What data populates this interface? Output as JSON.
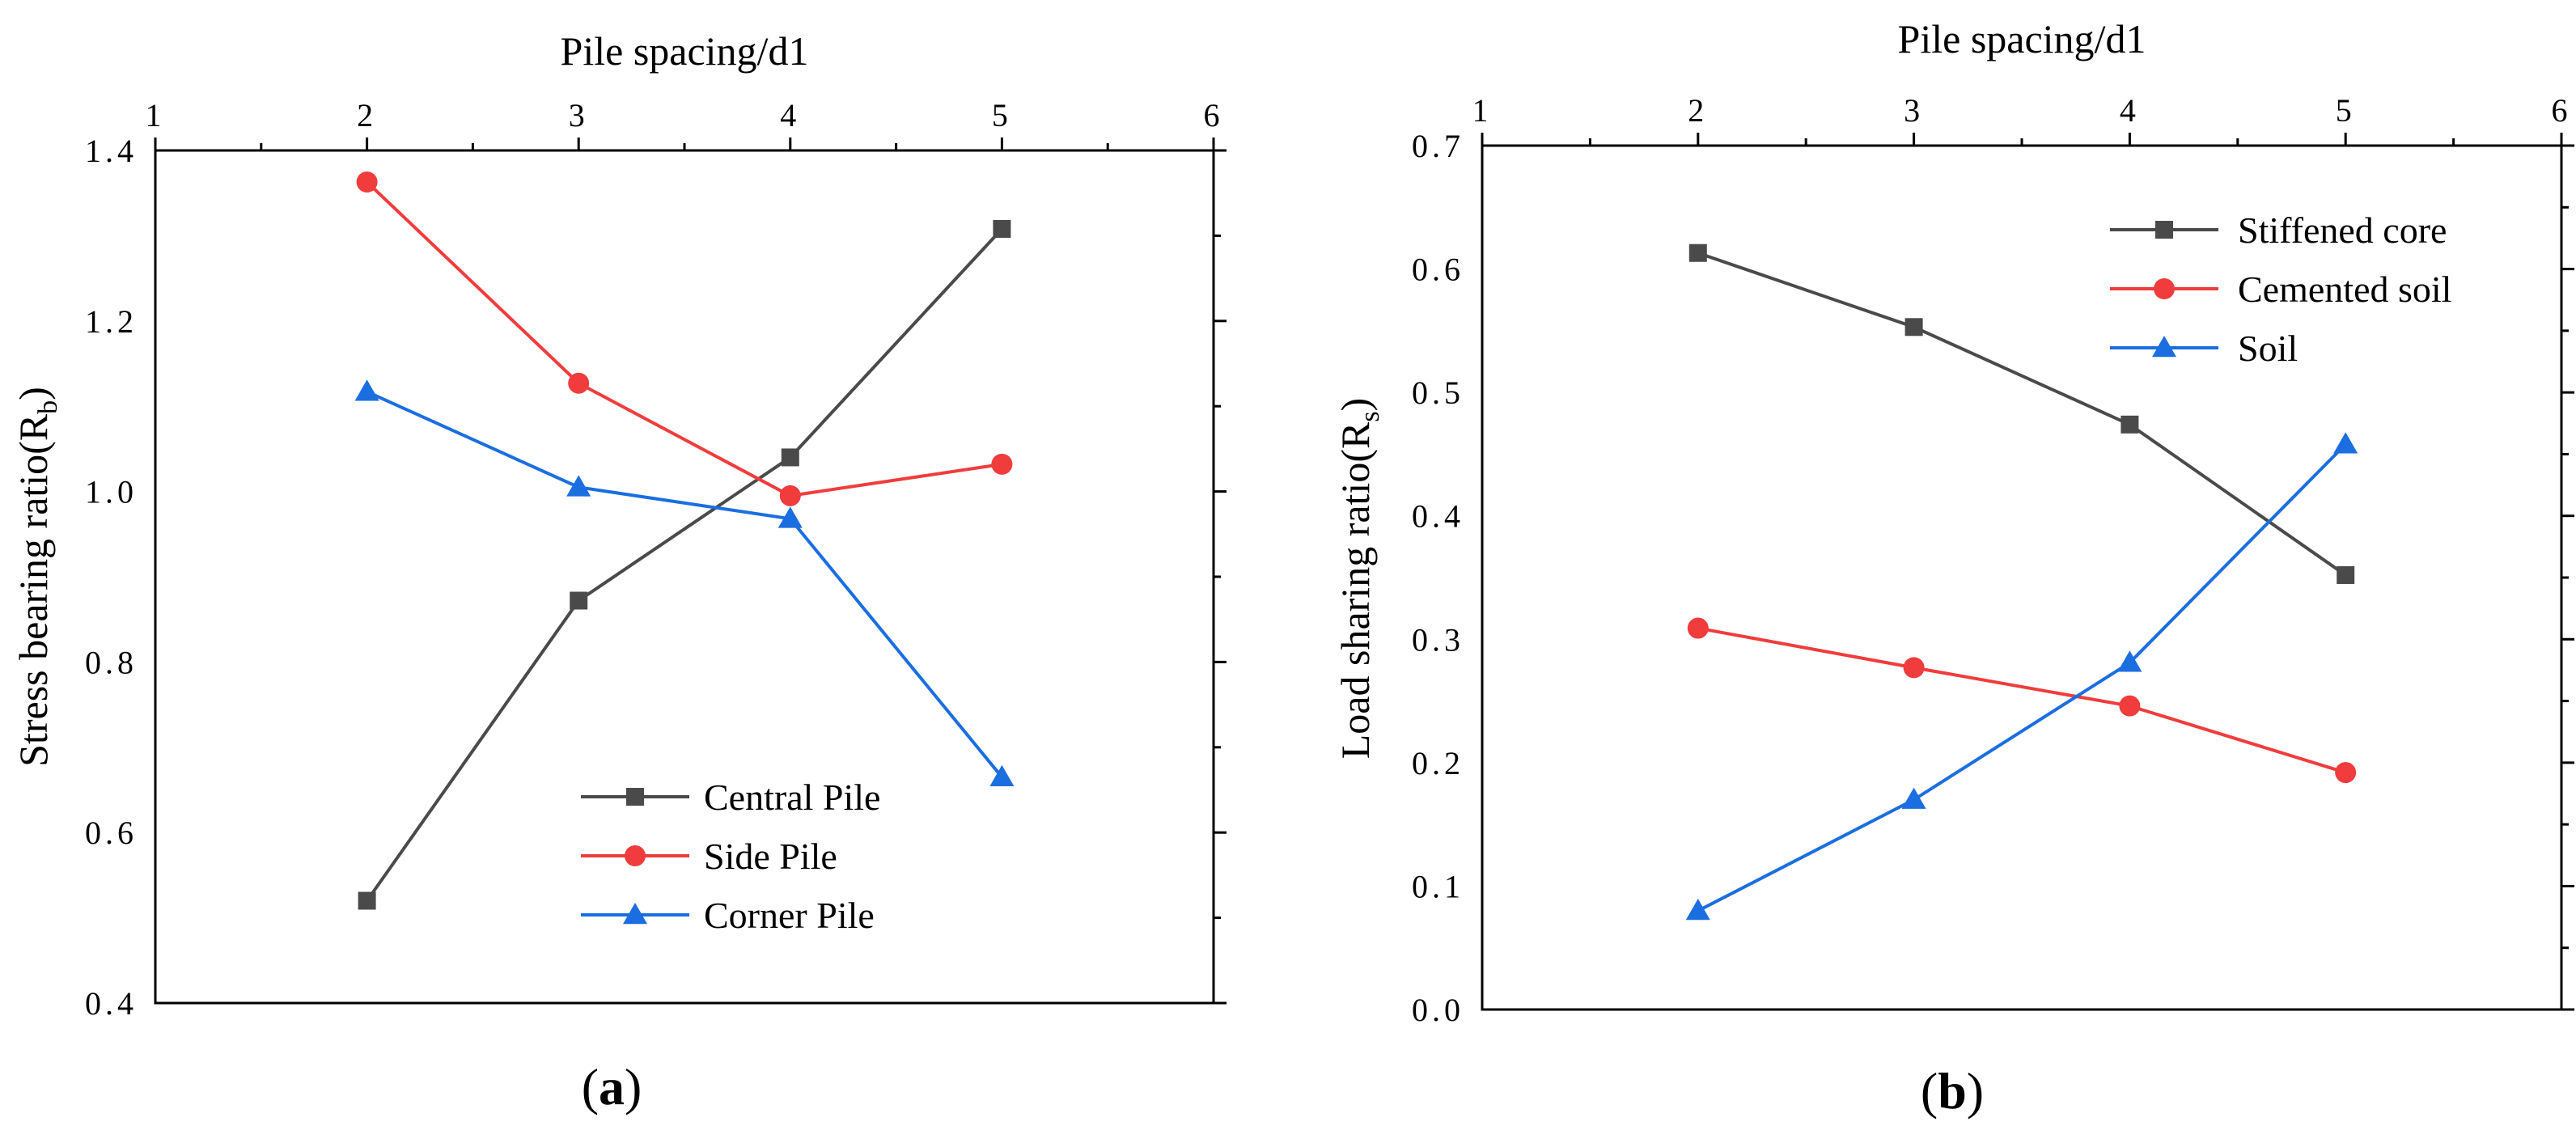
{
  "chart_data": [
    {
      "id": "a",
      "type": "line",
      "panel_label": "a",
      "title": "",
      "xlabel": "Pile spacing/d1",
      "xaxis_position": "top",
      "xlim": [
        1,
        6
      ],
      "xticks": [
        1,
        2,
        3,
        4,
        5,
        6
      ],
      "ylabel_main": "Stress bearing ratio(R",
      "ylabel_sub": "b",
      "ylabel_end": ")",
      "ylim": [
        0.4,
        1.4
      ],
      "yticks": [
        "0.4",
        "0.6",
        "0.8",
        "1.0",
        "1.2",
        "1.4"
      ],
      "legend_position": "lower-right",
      "x": [
        2,
        3,
        4,
        5
      ],
      "series": [
        {
          "name": "Central Pile",
          "marker": "square",
          "color": "#4a4a4a",
          "values": [
            0.52,
            0.872,
            1.04,
            1.308
          ]
        },
        {
          "name": "Side Pile",
          "marker": "circle",
          "color": "#f03c3c",
          "values": [
            1.363,
            1.127,
            0.995,
            1.032
          ]
        },
        {
          "name": "Corner Pile",
          "marker": "triangle",
          "color": "#1a6ee0",
          "values": [
            1.117,
            1.005,
            0.968,
            0.665
          ]
        }
      ]
    },
    {
      "id": "b",
      "type": "line",
      "panel_label": "b",
      "title": "",
      "xlabel": "Pile spacing/d1",
      "xaxis_position": "top",
      "xlim": [
        1,
        6
      ],
      "xticks": [
        1,
        2,
        3,
        4,
        5,
        6
      ],
      "ylabel_main": "Load sharing ratio(R",
      "ylabel_sub": "s",
      "ylabel_end": ")",
      "ylim": [
        0.0,
        0.7
      ],
      "yticks": [
        "0.0",
        "0.1",
        "0.2",
        "0.3",
        "0.4",
        "0.5",
        "0.6",
        "0.7"
      ],
      "legend_position": "upper-right",
      "x": [
        2,
        3,
        4,
        5
      ],
      "series": [
        {
          "name": "Stiffened core",
          "marker": "square",
          "color": "#4a4a4a",
          "values": [
            0.613,
            0.553,
            0.474,
            0.352
          ]
        },
        {
          "name": "Cemented soil",
          "marker": "circle",
          "color": "#f03c3c",
          "values": [
            0.309,
            0.277,
            0.246,
            0.192
          ]
        },
        {
          "name": "Soil",
          "marker": "triangle",
          "color": "#1a6ee0",
          "values": [
            0.08,
            0.17,
            0.281,
            0.458
          ]
        }
      ]
    }
  ]
}
